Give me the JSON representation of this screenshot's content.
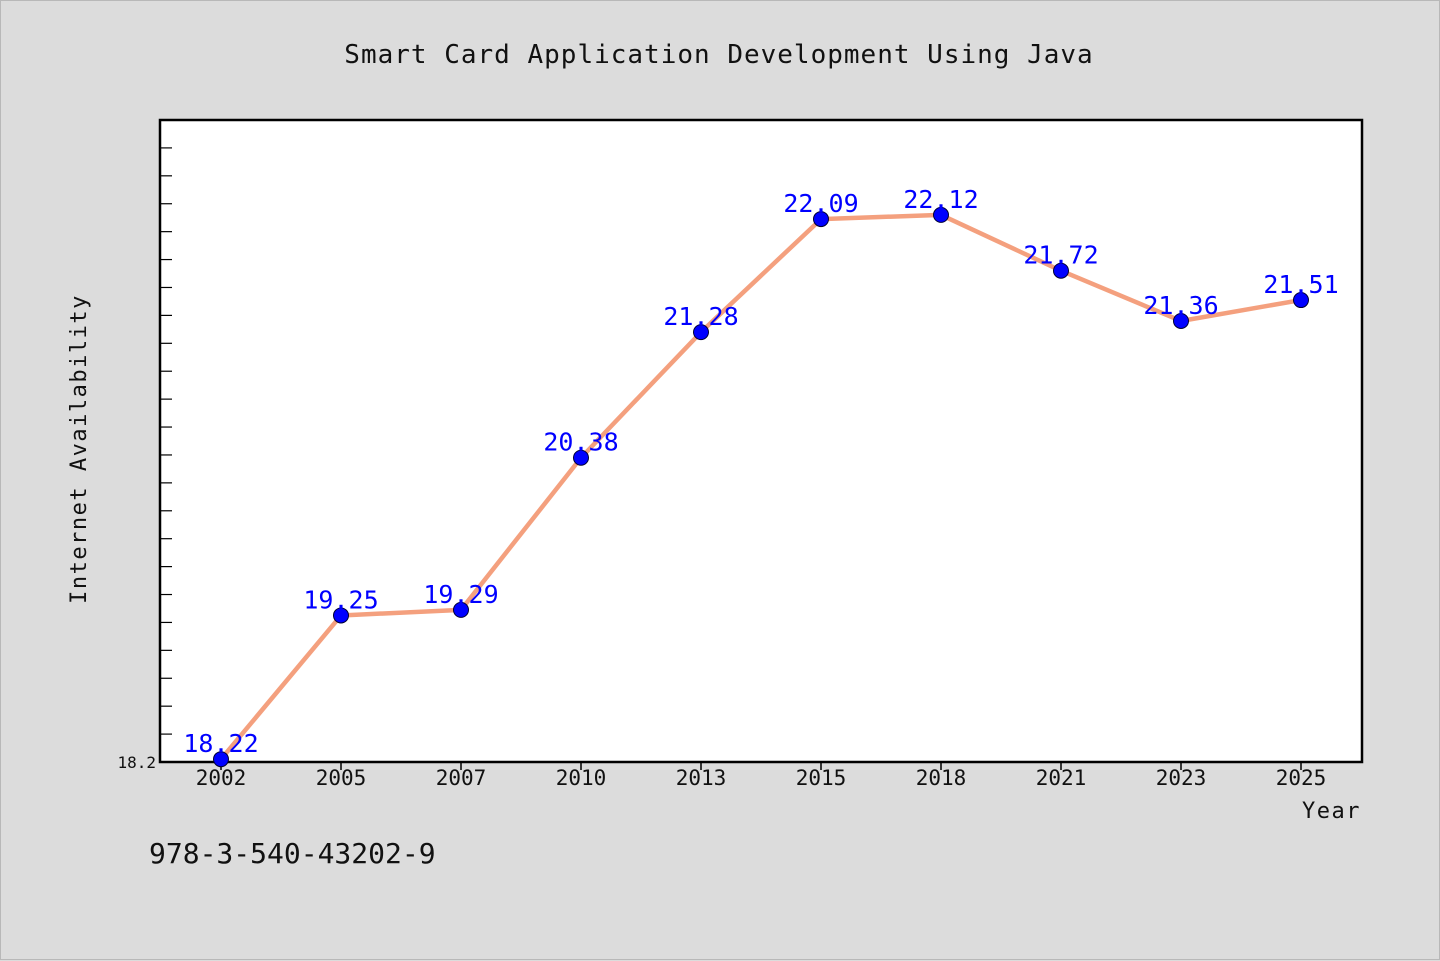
{
  "chart_data": {
    "type": "line",
    "title": "Smart Card Application Development Using Java",
    "xlabel": "Year",
    "ylabel": "Internet Availability",
    "categories": [
      "2002",
      "2005",
      "2007",
      "2010",
      "2013",
      "2015",
      "2018",
      "2021",
      "2023",
      "2025"
    ],
    "series": [
      {
        "values": [
          18.22,
          19.25,
          19.29,
          20.38,
          21.28,
          22.09,
          22.12,
          21.72,
          21.36,
          21.51
        ]
      }
    ],
    "data_labels": [
      "18.22",
      "19.25",
      "19.29",
      "20.38",
      "21.28",
      "22.09",
      "22.12",
      "21.72",
      "21.36",
      "21.51"
    ],
    "ylim": [
      18.2,
      22.8
    ],
    "y_tick_labels": [
      {
        "value": 18.2,
        "label": "18.2"
      }
    ],
    "minor_tick_step": 0.2,
    "grid": false,
    "line_color": "#f4a07e",
    "marker_color": "#0000ff",
    "label_color": "#0000ff",
    "plot_background": "#ffffff",
    "page_background": "#dcdcdc"
  },
  "footer": {
    "isbn": "978-3-540-43202-9"
  }
}
